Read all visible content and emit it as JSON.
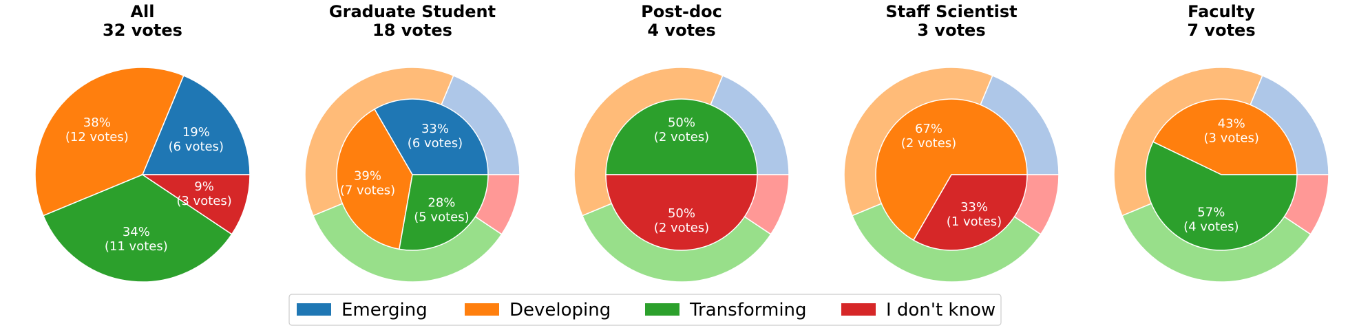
{
  "colors": {
    "Emerging": {
      "inner": "#1f77b4",
      "outer": "#aec7e8"
    },
    "Developing": {
      "inner": "#ff7f0e",
      "outer": "#ffbb78"
    },
    "Transforming": {
      "inner": "#2ca02c",
      "outer": "#98df8a"
    },
    "I don't know": {
      "inner": "#d62728",
      "outer": "#ff9896"
    }
  },
  "legend": [
    "Emerging",
    "Developing",
    "Transforming",
    "I don't know"
  ],
  "chart_data": [
    {
      "type": "pie",
      "title": "All",
      "subtitle": "32 votes",
      "categories": [
        "Emerging",
        "Developing",
        "Transforming",
        "I don't know"
      ],
      "values": [
        6,
        12,
        11,
        3
      ],
      "labels": [
        {
          "pct": "19%",
          "votes": "(6 votes)"
        },
        {
          "pct": "38%",
          "votes": "(12 votes)"
        },
        {
          "pct": "34%",
          "votes": "(11 votes)"
        },
        {
          "pct": "9%",
          "votes": "(3 votes)"
        }
      ]
    },
    {
      "type": "pie",
      "title": "Graduate Student",
      "subtitle": "18 votes",
      "outer_reference": "All",
      "categories": [
        "Emerging",
        "Developing",
        "Transforming",
        "I don't know"
      ],
      "values": [
        6,
        7,
        5,
        0
      ],
      "labels": [
        {
          "pct": "33%",
          "votes": "(6 votes)"
        },
        {
          "pct": "39%",
          "votes": "(7 votes)"
        },
        {
          "pct": "28%",
          "votes": "(5 votes)"
        },
        null
      ]
    },
    {
      "type": "pie",
      "title": "Post-doc",
      "subtitle": "4 votes",
      "outer_reference": "All",
      "categories": [
        "Emerging",
        "Developing",
        "Transforming",
        "I don't know"
      ],
      "values": [
        0,
        0,
        2,
        2
      ],
      "labels": [
        null,
        null,
        {
          "pct": "50%",
          "votes": "(2 votes)"
        },
        {
          "pct": "50%",
          "votes": "(2 votes)"
        }
      ]
    },
    {
      "type": "pie",
      "title": "Staff Scientist",
      "subtitle": "3 votes",
      "outer_reference": "All",
      "categories": [
        "Emerging",
        "Developing",
        "Transforming",
        "I don't know"
      ],
      "values": [
        0,
        2,
        0,
        1
      ],
      "labels": [
        null,
        {
          "pct": "67%",
          "votes": "(2 votes)"
        },
        null,
        {
          "pct": "33%",
          "votes": "(1 votes)"
        }
      ]
    },
    {
      "type": "pie",
      "title": "Faculty",
      "subtitle": "7 votes",
      "outer_reference": "All",
      "categories": [
        "Emerging",
        "Developing",
        "Transforming",
        "I don't know"
      ],
      "values": [
        0,
        3,
        4,
        0
      ],
      "labels": [
        null,
        {
          "pct": "43%",
          "votes": "(3 votes)"
        },
        {
          "pct": "57%",
          "votes": "(4 votes)"
        },
        null
      ]
    }
  ]
}
